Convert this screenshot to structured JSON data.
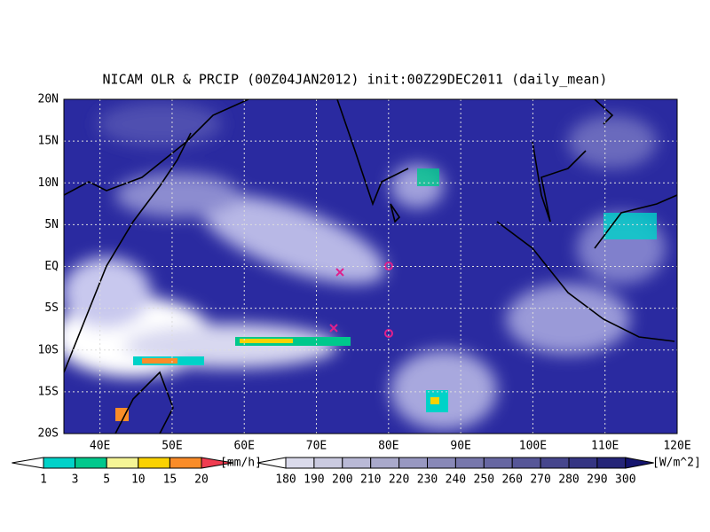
{
  "title": "NICAM OLR & PRCIP (00Z04JAN2012) init:00Z29DEC2011 (daily_mean)",
  "map": {
    "lat_labels": [
      "20N",
      "15N",
      "10N",
      "5N",
      "EQ",
      "5S",
      "10S",
      "15S",
      "20S"
    ],
    "lon_labels": [
      "40E",
      "50E",
      "60E",
      "70E",
      "80E",
      "90E",
      "100E",
      "110E",
      "120E"
    ]
  },
  "legends": [
    {
      "labels": [
        1,
        3,
        5,
        10,
        15,
        20
      ],
      "unit": "[mm/h]",
      "colors": [
        "#ffffff",
        "#00d2c8",
        "#00c88c",
        "#f5f596",
        "#fad200",
        "#fa8c28",
        "#f03c50"
      ]
    },
    {
      "labels": [
        180,
        190,
        200,
        210,
        220,
        230,
        240,
        250,
        260,
        270,
        280,
        290,
        300
      ],
      "unit": "[W/m^2]"
    }
  ]
}
